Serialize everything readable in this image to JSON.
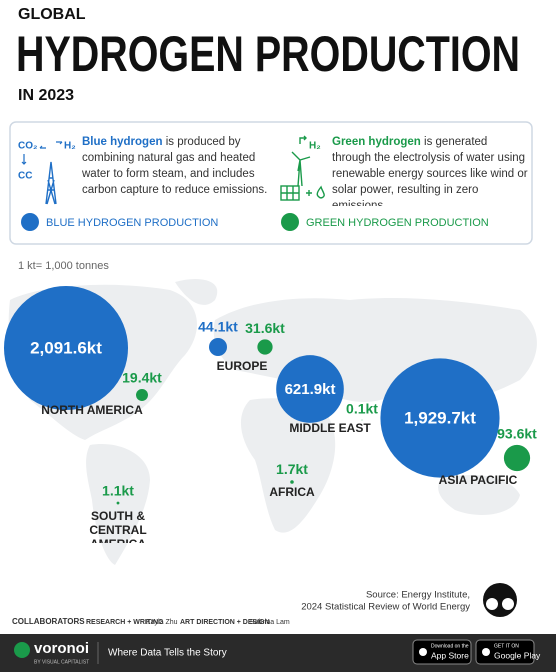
{
  "header": {
    "kicker": "GLOBAL",
    "title": "HYDROGEN PRODUCTION",
    "subtitle": "IN 2023"
  },
  "legend": {
    "blue": {
      "term": "Blue hydrogen",
      "description": " is produced by combining natural gas and heated water to form steam, and includes carbon capture to reduce emissions.",
      "icon_from": "CO₂",
      "icon_to": "H₂",
      "icon_capture": "CC"
    },
    "green": {
      "term": "Green hydrogen",
      "description": " is generated through the electrolysis of water using renewable energy sources like wind or solar power, resulting in zero emissions.",
      "icon_to": "H₂"
    }
  },
  "unit_note": "1 kt= 1,000 tonnes",
  "chart_data": {
    "type": "bubble-map",
    "categories": [
      "NORTH AMERICA",
      "EUROPE",
      "MIDDLE EAST",
      "ASIA PACIFIC",
      "AFRICA",
      "SOUTH & CENTRAL AMERICA"
    ],
    "series": [
      {
        "name": "BLUE HYDROGEN PRODUCTION",
        "color": "#1f6fc6",
        "values": [
          2091.6,
          44.1,
          621.9,
          1929.7,
          null,
          null
        ],
        "value_labels": [
          "2,091.6kt",
          "44.1kt",
          "621.9kt",
          "1,929.7kt",
          null,
          null
        ]
      },
      {
        "name": "GREEN HYDROGEN PRODUCTION",
        "color": "#1a9a4a",
        "values": [
          19.4,
          31.6,
          0.1,
          93.6,
          1.7,
          1.1
        ],
        "value_labels": [
          "19.4kt",
          "31.6kt",
          "0.1kt",
          "93.6kt",
          "1.7kt",
          "1.1kt"
        ]
      }
    ]
  },
  "source": {
    "line1": "Source: Energy Institute,",
    "line2": "2024 Statistical Review of World Energy"
  },
  "credits": {
    "collaborators": "COLLABORATORS",
    "research_label": "RESEARCH + WRITING",
    "research_name": "Kayla Zhu",
    "design_label": "ART DIRECTION + DESIGN",
    "design_name": "Sabrina Lam"
  },
  "footer": {
    "brand": "voronoi",
    "brand_sub": "BY VISUAL CAPITALIST",
    "tagline": "Where Data Tells the Story",
    "app_store_small": "Download on the",
    "app_store": "App Store",
    "google_play_small": "GET IT ON",
    "google_play": "Google Play"
  }
}
